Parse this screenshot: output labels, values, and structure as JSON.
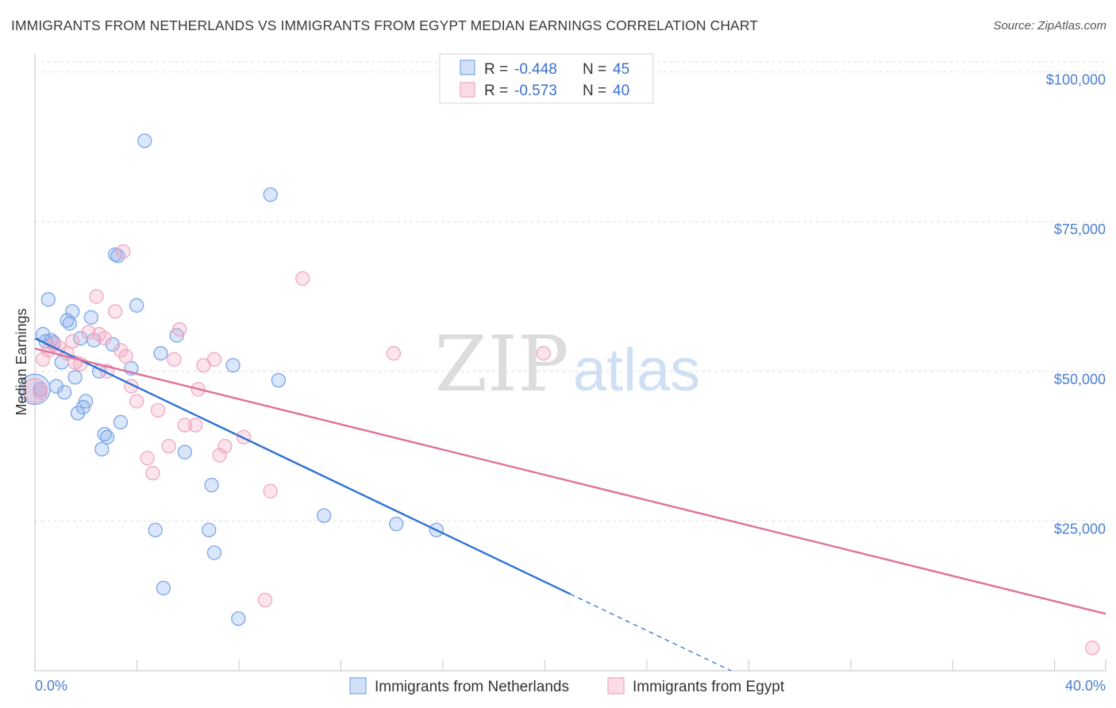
{
  "header": {
    "title": "IMMIGRANTS FROM NETHERLANDS VS IMMIGRANTS FROM EGYPT MEDIAN EARNINGS CORRELATION CHART",
    "source": "Source: ZipAtlas.com"
  },
  "watermark": {
    "zip": "ZIP",
    "atlas": "atlas"
  },
  "stats": [
    {
      "r_label": "R =",
      "r": "-0.448",
      "n_label": "N =",
      "n": "45",
      "color": "#7aa6e8"
    },
    {
      "r_label": "R =",
      "r": "-0.573",
      "n_label": "N =",
      "n": "40",
      "color": "#f1a7c0"
    }
  ],
  "chart_data": {
    "type": "scatter",
    "title": "IMMIGRANTS FROM NETHERLANDS VS IMMIGRANTS FROM EGYPT MEDIAN EARNINGS CORRELATION CHART",
    "xlabel": "",
    "ylabel": "Median Earnings",
    "xlim": [
      0,
      40
    ],
    "ylim": [
      0,
      103000
    ],
    "x_tick_labels": [
      {
        "value": 0,
        "label": "0.0%"
      },
      {
        "value": 40,
        "label": "40.0%"
      }
    ],
    "y_ticks": [
      {
        "value": 25000,
        "label": "$25,000"
      },
      {
        "value": 50000,
        "label": "$50,000"
      },
      {
        "value": 75000,
        "label": "$75,000"
      },
      {
        "value": 100000,
        "label": "$100,000"
      }
    ],
    "legend_position": "bottom-center",
    "series": [
      {
        "name": "Immigrants from Netherlands",
        "color": "#7aa6e8",
        "fill": "rgba(122,166,232,0.28)",
        "line_color": "#2f72d6",
        "trend": {
          "x1": 0.0,
          "y1": 55500,
          "x2": 20.0,
          "y2": 12800,
          "dash_to_x": 26.0,
          "dash_to_y": 0
        },
        "points": [
          [
            0.2,
            47000
          ],
          [
            0.3,
            56200
          ],
          [
            0.4,
            55000
          ],
          [
            0.5,
            62000
          ],
          [
            0.6,
            55200
          ],
          [
            0.7,
            54800
          ],
          [
            0.8,
            47500
          ],
          [
            1.0,
            51500
          ],
          [
            1.1,
            46500
          ],
          [
            1.2,
            58500
          ],
          [
            1.3,
            58000
          ],
          [
            1.4,
            60000
          ],
          [
            1.5,
            49000
          ],
          [
            1.6,
            43000
          ],
          [
            1.7,
            55500
          ],
          [
            1.8,
            44000
          ],
          [
            1.9,
            45000
          ],
          [
            2.1,
            59000
          ],
          [
            2.2,
            55200
          ],
          [
            2.4,
            50000
          ],
          [
            2.5,
            37000
          ],
          [
            2.6,
            39500
          ],
          [
            2.7,
            39000
          ],
          [
            2.9,
            54500
          ],
          [
            3.0,
            69500
          ],
          [
            3.1,
            69300
          ],
          [
            3.2,
            41500
          ],
          [
            3.6,
            50500
          ],
          [
            3.8,
            61000
          ],
          [
            4.1,
            88500
          ],
          [
            4.5,
            23500
          ],
          [
            4.7,
            53000
          ],
          [
            4.8,
            13800
          ],
          [
            5.3,
            56000
          ],
          [
            5.6,
            36500
          ],
          [
            6.5,
            23500
          ],
          [
            6.6,
            31000
          ],
          [
            6.7,
            19700
          ],
          [
            7.4,
            51000
          ],
          [
            7.6,
            8700
          ],
          [
            8.8,
            79500
          ],
          [
            9.1,
            48500
          ],
          [
            10.8,
            25900
          ],
          [
            13.5,
            24500
          ],
          [
            15.0,
            23500
          ]
        ]
      },
      {
        "name": "Immigrants from Egypt",
        "color": "#f1a7c0",
        "fill": "rgba(241,167,192,0.30)",
        "line_color": "#e0709a",
        "trend": {
          "x1": 0.0,
          "y1": 53800,
          "x2": 40.0,
          "y2": 9500
        },
        "points": [
          [
            0.2,
            46500
          ],
          [
            0.3,
            52000
          ],
          [
            0.5,
            53500
          ],
          [
            0.7,
            54500
          ],
          [
            0.9,
            54000
          ],
          [
            1.2,
            53000
          ],
          [
            1.4,
            55000
          ],
          [
            1.5,
            51500
          ],
          [
            1.7,
            51200
          ],
          [
            2.0,
            56500
          ],
          [
            2.3,
            62500
          ],
          [
            2.4,
            56200
          ],
          [
            2.6,
            55500
          ],
          [
            2.7,
            50000
          ],
          [
            3.0,
            60000
          ],
          [
            3.2,
            53500
          ],
          [
            3.4,
            52500
          ],
          [
            3.6,
            47500
          ],
          [
            3.8,
            45000
          ],
          [
            4.2,
            35500
          ],
          [
            4.4,
            33000
          ],
          [
            4.6,
            43500
          ],
          [
            5.0,
            37500
          ],
          [
            5.2,
            52000
          ],
          [
            5.4,
            57000
          ],
          [
            5.6,
            41000
          ],
          [
            6.0,
            41000
          ],
          [
            6.1,
            47000
          ],
          [
            6.3,
            51000
          ],
          [
            6.7,
            52000
          ],
          [
            6.9,
            36000
          ],
          [
            7.1,
            37500
          ],
          [
            7.8,
            39000
          ],
          [
            8.8,
            30000
          ],
          [
            8.6,
            11800
          ],
          [
            3.3,
            70000
          ],
          [
            10.0,
            65500
          ],
          [
            13.4,
            53000
          ],
          [
            19.0,
            53000
          ],
          [
            39.5,
            3800
          ]
        ]
      }
    ]
  }
}
